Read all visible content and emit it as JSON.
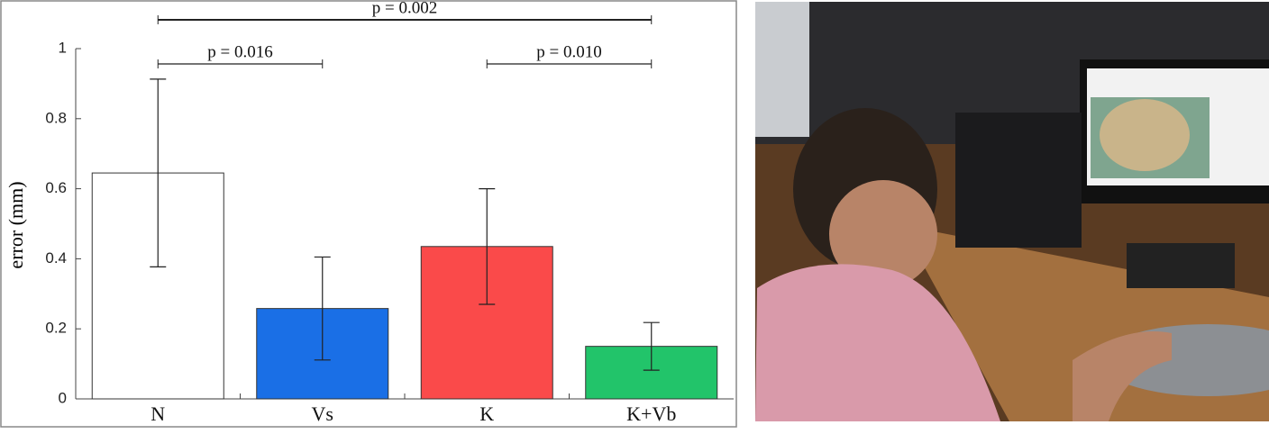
{
  "chart_data": {
    "type": "bar",
    "ylabel": "error (mm)",
    "categories": [
      "N",
      "Vs",
      "K",
      "K+Vb"
    ],
    "values": [
      0.645,
      0.258,
      0.435,
      0.15
    ],
    "errors": [
      0.268,
      0.147,
      0.165,
      0.068
    ],
    "colors": [
      "#ffffff",
      "#1a6fe6",
      "#fa4a4a",
      "#22c46a"
    ],
    "ylim": [
      0,
      1
    ],
    "yticks": [
      0,
      0.2,
      0.4,
      0.6,
      0.8,
      1
    ],
    "annotations": [
      {
        "text": "p = 0.002",
        "from": 0,
        "to": 3
      },
      {
        "text": "p = 0.016",
        "from": 0,
        "to": 1
      },
      {
        "text": "p = 0.010",
        "from": 2,
        "to": 3
      }
    ]
  }
}
